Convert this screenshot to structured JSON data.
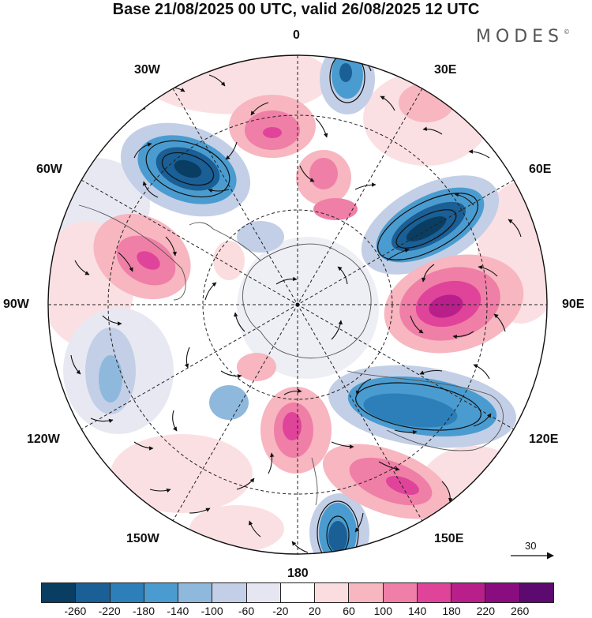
{
  "title": "Base 21/08/2025 00 UTC, valid 26/08/2025 12 UTC",
  "brand": "MODES",
  "brand_mark": "©",
  "map_labels": {
    "top": "0",
    "top_left": "30W",
    "top_right": "30E",
    "upper_left": "60W",
    "upper_right": "60E",
    "left": "90W",
    "right": "90E",
    "lower_left": "120W",
    "lower_right": "120E",
    "bottom_left": "150W",
    "bottom_right": "150E",
    "bottom": "180"
  },
  "reference_vector": "30",
  "colorbar": {
    "ticks": [
      "-260",
      "-220",
      "-180",
      "-140",
      "-100",
      "-60",
      "-20",
      "20",
      "60",
      "100",
      "140",
      "180",
      "220",
      "260"
    ],
    "colors": [
      "#0a3d62",
      "#1a5f95",
      "#2c7fb8",
      "#4a9cd0",
      "#8fb8dd",
      "#c3cfe6",
      "#e6e6f2",
      "#ffffff",
      "#fbdde0",
      "#f7b6c0",
      "#ef7fa6",
      "#e0449a",
      "#b81f8a",
      "#8a0d80",
      "#5c0a70"
    ]
  }
}
